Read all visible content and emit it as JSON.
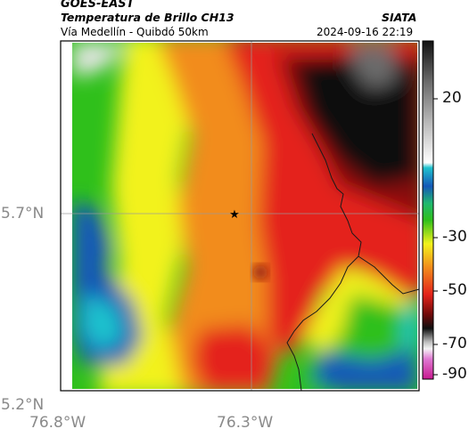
{
  "header": {
    "satellite": "GOES-EAST",
    "title": "Temperatura de Brillo CH13",
    "agency": "SIATA",
    "subtitle": "Vía Medellín - Quibdó 50km",
    "timestamp": "2024-09-16 22:19"
  },
  "map": {
    "lat_labels": [
      "5.7°N",
      "5.2°N"
    ],
    "lon_labels": [
      "76.8°W",
      "76.3°W"
    ],
    "marker": "star-marker"
  },
  "colorbar": {
    "tick_labels": [
      "20",
      "-30",
      "-50",
      "-70",
      "-90"
    ],
    "ticks": [
      20,
      -30,
      -50,
      -70,
      -90
    ],
    "range": [
      -95,
      40
    ]
  },
  "colors": {
    "cold": "#0b0b0b",
    "red": "#e4231b",
    "orange": "#f28c1b",
    "yellow": "#f2f21b",
    "green": "#2fc01b",
    "cyan": "#1fc2ce",
    "blue": "#1558b8"
  }
}
